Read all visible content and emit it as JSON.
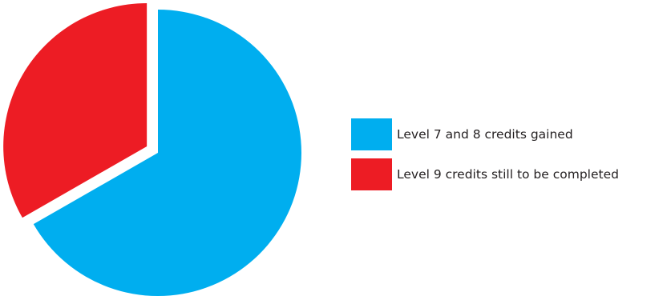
{
  "chart_data": {
    "type": "pie",
    "title": "",
    "slices": [
      {
        "label": "Level 7 and 8 credits gained",
        "value": 66.7,
        "color": "#00aeef"
      },
      {
        "label": "Level 9 credits still to be completed",
        "value": 33.3,
        "color": "#ed1c24"
      }
    ],
    "exploded": "Level 9 credits still to be completed",
    "legend_position": "right"
  }
}
